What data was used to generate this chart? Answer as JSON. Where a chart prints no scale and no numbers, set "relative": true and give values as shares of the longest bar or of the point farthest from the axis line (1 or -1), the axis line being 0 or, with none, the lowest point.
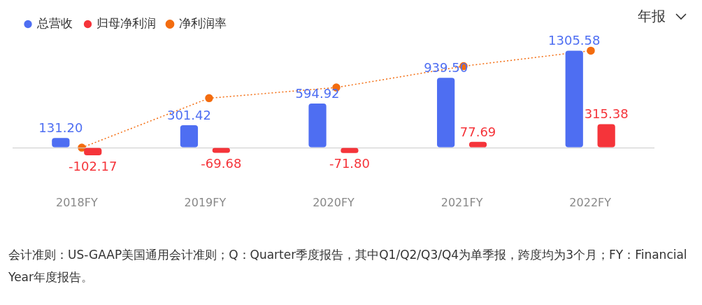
{
  "chart_data": [
    {
      "type": "bar",
      "categories": [
        "2018FY",
        "2019FY",
        "2020FY",
        "2021FY",
        "2022FY"
      ],
      "series": [
        {
          "name": "总营收",
          "color": "#4e6ef2",
          "values": [
            131.2,
            301.42,
            594.92,
            939.5,
            1305.58
          ],
          "value_labels": [
            "131.20",
            "301.42",
            "594.92",
            "939.50",
            "1305.58"
          ]
        },
        {
          "name": "归母净利润",
          "color": "#f5343a",
          "values": [
            -102.17,
            -69.68,
            -71.8,
            77.69,
            315.38
          ],
          "value_labels": [
            "-102.17",
            "-69.68",
            "-71.80",
            "77.69",
            "315.38"
          ]
        }
      ],
      "legend": "top left",
      "grid": false,
      "annotations": [
        "年报",
        "会计准则：US-GAAP美国通用会计准则；Q：Quarter季度报告，其中Q1/Q2/Q3/Q4为单季报，跨度均为3个月；FY：Financial Year年度报告。"
      ]
    },
    {
      "type": "line",
      "relative": true,
      "categories": [
        null,
        null,
        null,
        null,
        null
      ],
      "legend": "top left",
      "marker": "circle",
      "line_style": "dotted",
      "series": [
        {
          "name": "净利润率",
          "color": "#f36c0f",
          "values": [
            0,
            0.51,
            0.62,
            0.84,
            1
          ]
        }
      ]
    }
  ]
}
